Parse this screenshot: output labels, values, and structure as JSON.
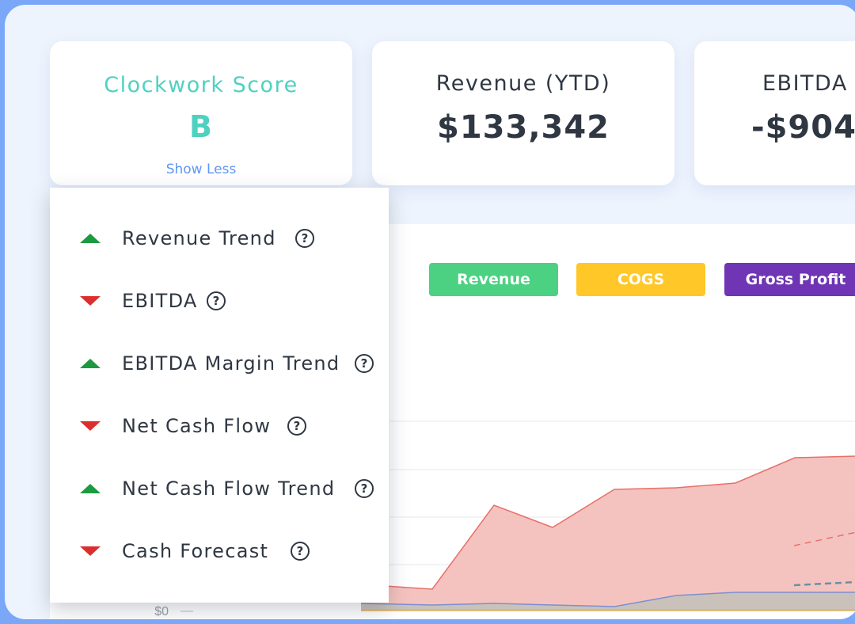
{
  "cards": [
    {
      "title": "Clockwork Score",
      "value": "B",
      "link": "Show Less"
    },
    {
      "title": "Revenue (YTD)",
      "value": "$133,342"
    },
    {
      "title": "EBITDA",
      "value": "-$904"
    }
  ],
  "legend": [
    {
      "label": "Revenue",
      "color": "#4cd182"
    },
    {
      "label": "COGS",
      "color": "#ffc727"
    },
    {
      "label": "Gross Profit",
      "color": "#6f35b5"
    }
  ],
  "score_breakdown": [
    {
      "label": "Revenue Trend",
      "trend": "up"
    },
    {
      "label": "EBITDA",
      "trend": "down"
    },
    {
      "label": "EBITDA Margin Trend",
      "trend": "up"
    },
    {
      "label": "Net Cash Flow",
      "trend": "down"
    },
    {
      "label": "Net Cash Flow Trend",
      "trend": "up"
    },
    {
      "label": "Cash Forecast",
      "trend": "down"
    }
  ],
  "colors": {
    "score_accent": "#4fd1c0",
    "link": "#5f97f2",
    "up": "#1d9a3f",
    "down": "#dc2e2e",
    "revenue_area": "#f3b9b4"
  },
  "chart_data": {
    "type": "area",
    "y_tick_labels": [
      "$0"
    ],
    "grid": true,
    "series": [
      {
        "name": "Revenue",
        "values": [
          0.17,
          0.14,
          0.67,
          0.53,
          0.77,
          0.78,
          0.81,
          0.97,
          0.98
        ]
      },
      {
        "name": "Gross Profit",
        "values": [
          0.05,
          0.04,
          0.05,
          0.04,
          0.03,
          0.1,
          0.12,
          0.12,
          0.12
        ]
      },
      {
        "name": "COGS",
        "values": [
          0.01,
          0.01,
          0.01,
          0.01,
          0.01,
          0.01,
          0.01,
          0.01,
          0.01
        ]
      }
    ]
  }
}
